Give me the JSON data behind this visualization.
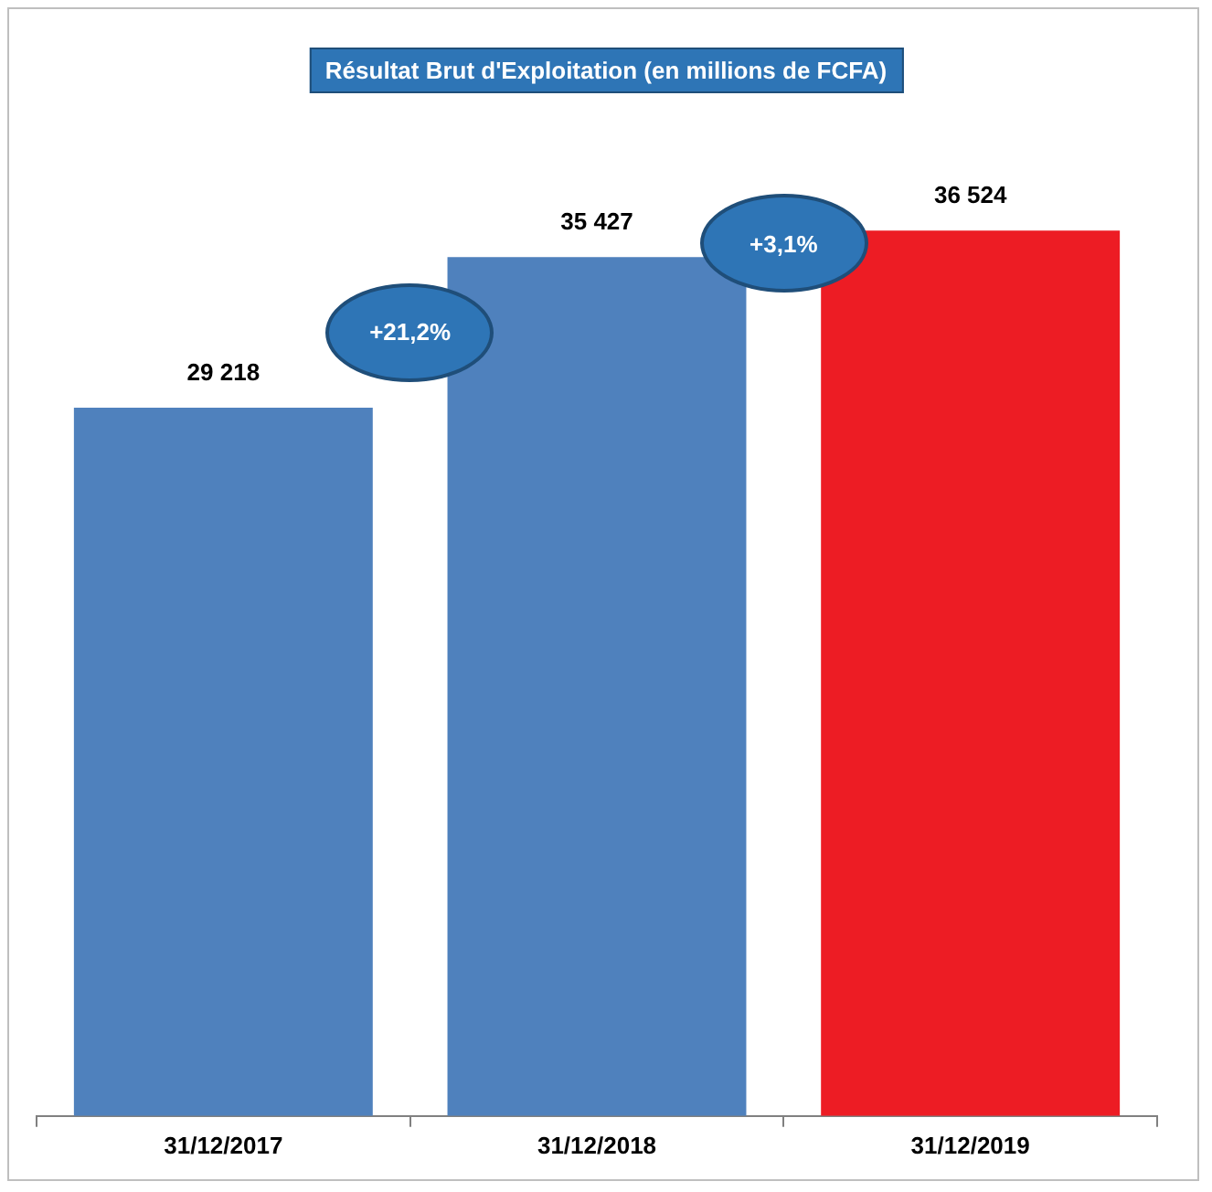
{
  "chart_data": {
    "type": "bar",
    "title": "Résultat Brut d'Exploitation (en millions de  FCFA)",
    "categories": [
      "31/12/2017",
      "31/12/2018",
      "31/12/2019"
    ],
    "values": [
      29218,
      35427,
      36524
    ],
    "colors": [
      "#4f81bd",
      "#4f81bd",
      "#ed1c24"
    ],
    "value_labels": [
      "29 218",
      "35 427",
      "36 524"
    ],
    "annotations": [
      "+21,2%",
      "+3,1%"
    ]
  }
}
